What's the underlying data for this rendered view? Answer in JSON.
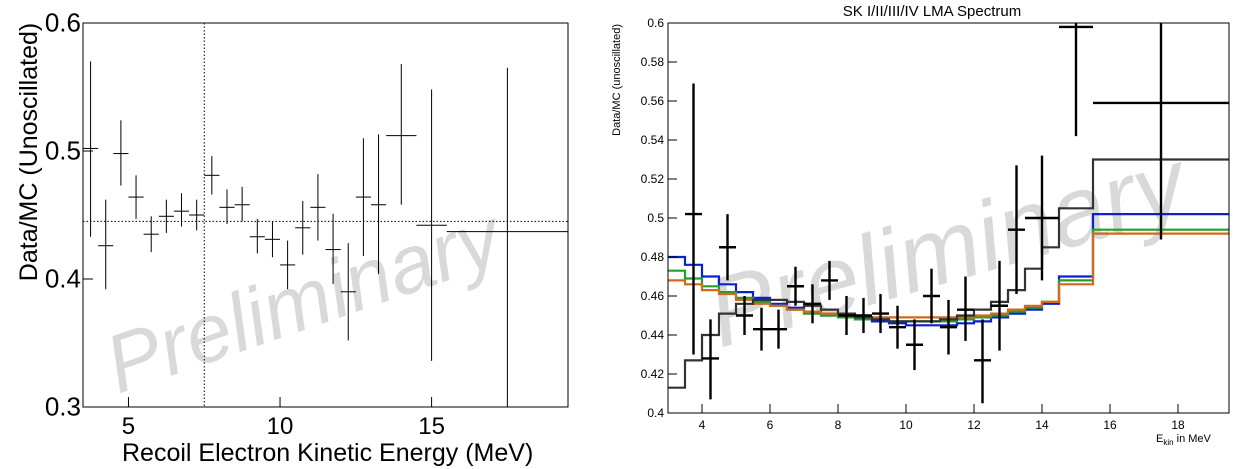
{
  "left_panel": {
    "title": "",
    "xlabel": "Recoil Electron Kinetic Energy (MeV)",
    "ylabel": "Data/MC (Unoscillated)",
    "watermark": "Preliminary"
  },
  "right_panel": {
    "title": "SK I/II/III/IV LMA Spectrum",
    "xlabel_main": "E",
    "xlabel_sub": "kin",
    "xlabel_rest": " in MeV",
    "ylabel": "Data/MC (unoscillated)",
    "watermark": "Preliminary"
  },
  "colors": {
    "data": "#000000",
    "model_blue": "#0a1fd6",
    "model_green": "#22a02a",
    "model_orange": "#d2691e",
    "model_gray": "#333333"
  },
  "chart_data": [
    {
      "type": "scatter",
      "title": "",
      "xlabel": "Recoil Electron Kinetic Energy (MeV)",
      "ylabel": "Data/MC (Unoscillated)",
      "xlim": [
        3.5,
        19.5
      ],
      "ylim": [
        0.3,
        0.6
      ],
      "xticks": [
        5,
        10,
        15
      ],
      "xtick_labels": [
        "5",
        "10",
        "15"
      ],
      "yticks": [
        0.3,
        0.4,
        0.5,
        0.6
      ],
      "ytick_labels": [
        "0.3",
        "0.4",
        "0.5",
        "0.6"
      ],
      "reference_lines": {
        "x": 7.5,
        "y": 0.445
      },
      "points": [
        {
          "x": 3.75,
          "xerr": 0.25,
          "y": 0.502,
          "ylo": 0.433,
          "yhi": 0.57
        },
        {
          "x": 4.25,
          "xerr": 0.25,
          "y": 0.426,
          "ylo": 0.392,
          "yhi": 0.462
        },
        {
          "x": 4.75,
          "xerr": 0.25,
          "y": 0.498,
          "ylo": 0.473,
          "yhi": 0.524
        },
        {
          "x": 5.25,
          "xerr": 0.25,
          "y": 0.464,
          "ylo": 0.447,
          "yhi": 0.481
        },
        {
          "x": 5.75,
          "xerr": 0.25,
          "y": 0.435,
          "ylo": 0.421,
          "yhi": 0.449
        },
        {
          "x": 6.25,
          "xerr": 0.25,
          "y": 0.449,
          "ylo": 0.436,
          "yhi": 0.462
        },
        {
          "x": 6.75,
          "xerr": 0.25,
          "y": 0.453,
          "ylo": 0.441,
          "yhi": 0.467
        },
        {
          "x": 7.25,
          "xerr": 0.25,
          "y": 0.45,
          "ylo": 0.438,
          "yhi": 0.462
        },
        {
          "x": 7.75,
          "xerr": 0.25,
          "y": 0.481,
          "ylo": 0.466,
          "yhi": 0.496
        },
        {
          "x": 8.25,
          "xerr": 0.25,
          "y": 0.456,
          "ylo": 0.443,
          "yhi": 0.47
        },
        {
          "x": 8.75,
          "xerr": 0.25,
          "y": 0.458,
          "ylo": 0.445,
          "yhi": 0.472
        },
        {
          "x": 9.25,
          "xerr": 0.25,
          "y": 0.433,
          "ylo": 0.42,
          "yhi": 0.447
        },
        {
          "x": 9.75,
          "xerr": 0.25,
          "y": 0.431,
          "ylo": 0.417,
          "yhi": 0.445
        },
        {
          "x": 10.25,
          "xerr": 0.25,
          "y": 0.411,
          "ylo": 0.392,
          "yhi": 0.43
        },
        {
          "x": 10.75,
          "xerr": 0.25,
          "y": 0.44,
          "ylo": 0.419,
          "yhi": 0.461
        },
        {
          "x": 11.25,
          "xerr": 0.25,
          "y": 0.456,
          "ylo": 0.43,
          "yhi": 0.482
        },
        {
          "x": 11.75,
          "xerr": 0.25,
          "y": 0.423,
          "ylo": 0.396,
          "yhi": 0.451
        },
        {
          "x": 12.25,
          "xerr": 0.25,
          "y": 0.39,
          "ylo": 0.352,
          "yhi": 0.428
        },
        {
          "x": 12.75,
          "xerr": 0.25,
          "y": 0.464,
          "ylo": 0.418,
          "yhi": 0.51
        },
        {
          "x": 13.25,
          "xerr": 0.25,
          "y": 0.458,
          "ylo": 0.404,
          "yhi": 0.513
        },
        {
          "x": 14.0,
          "xerr": 0.5,
          "y": 0.512,
          "ylo": 0.458,
          "yhi": 0.568
        },
        {
          "x": 15.0,
          "xerr": 0.5,
          "y": 0.442,
          "ylo": 0.336,
          "yhi": 0.548
        },
        {
          "x": 17.5,
          "xerr": 2.0,
          "y": 0.437,
          "ylo": 0.3,
          "yhi": 0.565
        }
      ]
    },
    {
      "type": "line",
      "title": "SK I/II/III/IV LMA Spectrum",
      "xlabel": "E_kin in MeV",
      "ylabel": "Data/MC (unoscillated)",
      "xlim": [
        3.0,
        19.5
      ],
      "ylim": [
        0.4,
        0.6
      ],
      "xticks": [
        4,
        6,
        8,
        10,
        12,
        14,
        16,
        18
      ],
      "xtick_labels": [
        "4",
        "6",
        "8",
        "10",
        "12",
        "14",
        "16",
        "18"
      ],
      "yticks": [
        0.4,
        0.42,
        0.44,
        0.46,
        0.48,
        0.5,
        0.52,
        0.54,
        0.56,
        0.58,
        0.6
      ],
      "ytick_labels": [
        "0.4",
        "0.42",
        "0.44",
        "0.46",
        "0.48",
        "0.5",
        "0.52",
        "0.54",
        "0.56",
        "0.58",
        "0.6"
      ],
      "bin_edges": [
        3.0,
        3.5,
        4.0,
        4.5,
        5.0,
        5.5,
        6.0,
        6.5,
        7.0,
        7.5,
        8.0,
        8.5,
        9.0,
        9.5,
        10.0,
        10.5,
        11.0,
        11.5,
        12.0,
        12.5,
        13.0,
        13.5,
        14.0,
        14.5,
        15.5,
        19.5
      ],
      "series": [
        {
          "color_key": "model_blue",
          "values": [
            0.48,
            0.476,
            0.47,
            0.466,
            0.462,
            0.459,
            0.456,
            0.454,
            0.452,
            0.45,
            0.449,
            0.448,
            0.447,
            0.446,
            0.445,
            0.445,
            0.445,
            0.446,
            0.447,
            0.449,
            0.451,
            0.453,
            0.456,
            0.47,
            0.502
          ]
        },
        {
          "color_key": "model_green",
          "values": [
            0.473,
            0.469,
            0.465,
            0.462,
            0.459,
            0.457,
            0.455,
            0.453,
            0.451,
            0.45,
            0.449,
            0.448,
            0.448,
            0.447,
            0.447,
            0.447,
            0.447,
            0.448,
            0.449,
            0.45,
            0.452,
            0.454,
            0.457,
            0.468,
            0.494
          ]
        },
        {
          "color_key": "model_orange",
          "values": [
            0.468,
            0.466,
            0.463,
            0.461,
            0.458,
            0.456,
            0.455,
            0.453,
            0.452,
            0.451,
            0.45,
            0.449,
            0.449,
            0.449,
            0.449,
            0.449,
            0.449,
            0.449,
            0.45,
            0.451,
            0.453,
            0.455,
            0.457,
            0.466,
            0.492
          ]
        },
        {
          "color_key": "model_gray",
          "values": [
            0.413,
            0.427,
            0.44,
            0.451,
            0.456,
            0.458,
            0.458,
            0.457,
            0.455,
            0.453,
            0.451,
            0.449,
            0.448,
            0.447,
            0.447,
            0.447,
            0.448,
            0.45,
            0.453,
            0.457,
            0.463,
            0.474,
            0.485,
            0.505,
            0.53
          ]
        }
      ],
      "points": [
        {
          "x": 3.75,
          "xerr": 0.25,
          "y": 0.502,
          "ylo": 0.43,
          "yhi": 0.569
        },
        {
          "x": 4.25,
          "xerr": 0.25,
          "y": 0.428,
          "ylo": 0.407,
          "yhi": 0.448
        },
        {
          "x": 4.75,
          "xerr": 0.25,
          "y": 0.485,
          "ylo": 0.468,
          "yhi": 0.502
        },
        {
          "x": 5.25,
          "xerr": 0.25,
          "y": 0.45,
          "ylo": 0.44,
          "yhi": 0.46
        },
        {
          "x": 5.75,
          "xerr": 0.25,
          "y": 0.443,
          "ylo": 0.432,
          "yhi": 0.454
        },
        {
          "x": 6.25,
          "xerr": 0.25,
          "y": 0.443,
          "ylo": 0.433,
          "yhi": 0.453
        },
        {
          "x": 6.75,
          "xerr": 0.25,
          "y": 0.465,
          "ylo": 0.455,
          "yhi": 0.475
        },
        {
          "x": 7.25,
          "xerr": 0.25,
          "y": 0.456,
          "ylo": 0.446,
          "yhi": 0.466
        },
        {
          "x": 7.75,
          "xerr": 0.25,
          "y": 0.468,
          "ylo": 0.458,
          "yhi": 0.478
        },
        {
          "x": 8.25,
          "xerr": 0.25,
          "y": 0.45,
          "ylo": 0.44,
          "yhi": 0.46
        },
        {
          "x": 8.75,
          "xerr": 0.25,
          "y": 0.45,
          "ylo": 0.441,
          "yhi": 0.459
        },
        {
          "x": 9.25,
          "xerr": 0.25,
          "y": 0.451,
          "ylo": 0.441,
          "yhi": 0.461
        },
        {
          "x": 9.75,
          "xerr": 0.25,
          "y": 0.444,
          "ylo": 0.433,
          "yhi": 0.455
        },
        {
          "x": 10.25,
          "xerr": 0.25,
          "y": 0.435,
          "ylo": 0.422,
          "yhi": 0.448
        },
        {
          "x": 10.75,
          "xerr": 0.25,
          "y": 0.46,
          "ylo": 0.446,
          "yhi": 0.474
        },
        {
          "x": 11.25,
          "xerr": 0.25,
          "y": 0.444,
          "ylo": 0.43,
          "yhi": 0.458
        },
        {
          "x": 11.75,
          "xerr": 0.25,
          "y": 0.453,
          "ylo": 0.437,
          "yhi": 0.47
        },
        {
          "x": 12.25,
          "xerr": 0.25,
          "y": 0.427,
          "ylo": 0.405,
          "yhi": 0.448
        },
        {
          "x": 12.75,
          "xerr": 0.25,
          "y": 0.455,
          "ylo": 0.432,
          "yhi": 0.478
        },
        {
          "x": 13.25,
          "xerr": 0.25,
          "y": 0.494,
          "ylo": 0.461,
          "yhi": 0.527
        },
        {
          "x": 14.0,
          "xerr": 0.5,
          "y": 0.5,
          "ylo": 0.468,
          "yhi": 0.532
        },
        {
          "x": 15.0,
          "xerr": 0.5,
          "y": 0.598,
          "ylo": 0.542,
          "yhi": 0.6
        },
        {
          "x": 17.5,
          "xerr": 2.0,
          "y": 0.559,
          "ylo": 0.489,
          "yhi": 0.6
        }
      ]
    }
  ]
}
